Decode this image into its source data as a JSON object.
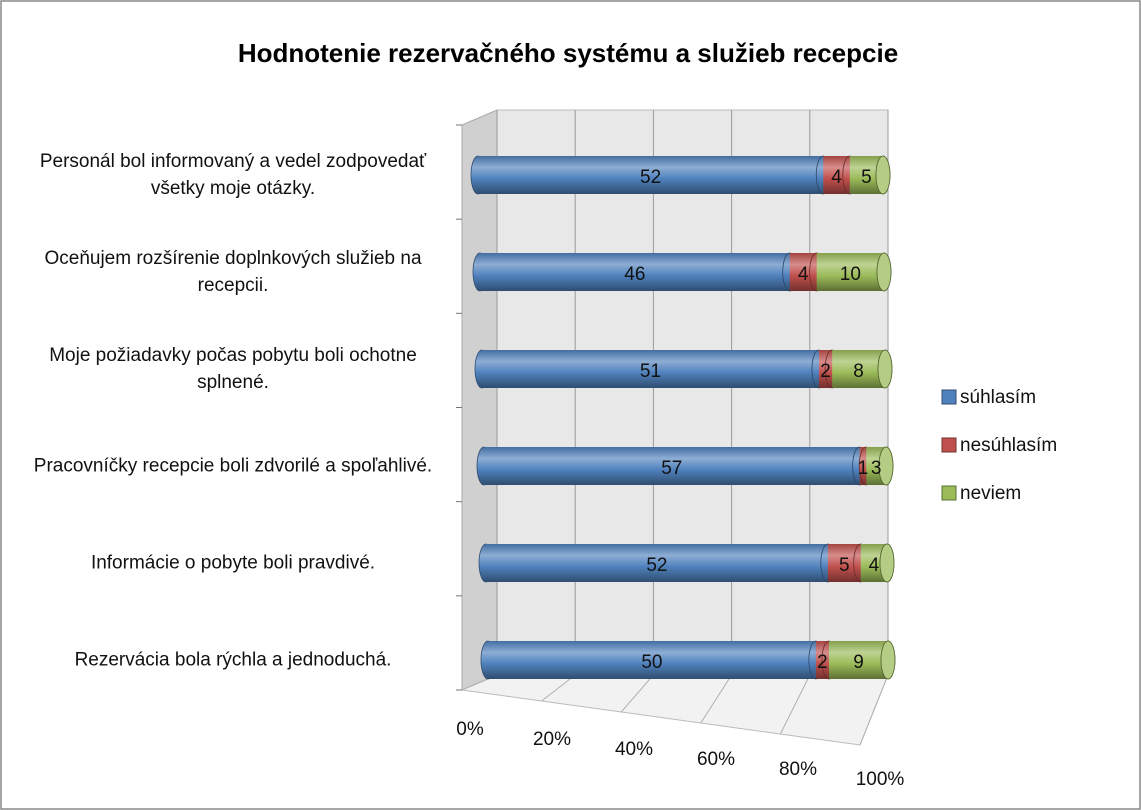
{
  "chart_data": {
    "type": "bar",
    "stacked": "percent",
    "orientation": "horizontal",
    "title": "Hodnotenie rezervačného systému a služieb recepcie",
    "categories": [
      "Personál bol informovaný a vedel zodpovedať všetky moje otázky.",
      "Oceňujem rozšírenie doplnkových služieb na recepcii.",
      "Moje požiadavky počas pobytu boli ochotne splnené.",
      "Pracovníčky recepcie boli zdvorilé a spoľahlivé.",
      "Informácie o pobyte boli pravdivé.",
      "Rezervácia bola rýchla a jednoduchá."
    ],
    "series": [
      {
        "name": "súhlasím",
        "color": "#4f81bd",
        "values": [
          52,
          46,
          51,
          57,
          52,
          50
        ]
      },
      {
        "name": "nesúhlasím",
        "color": "#c0504d",
        "values": [
          4,
          4,
          2,
          1,
          5,
          2
        ]
      },
      {
        "name": "neviem",
        "color": "#9bbb59",
        "values": [
          5,
          10,
          8,
          3,
          4,
          9
        ]
      }
    ],
    "xlim": [
      0,
      100
    ],
    "xticks": [
      {
        "value": 0,
        "label": "0%"
      },
      {
        "value": 20,
        "label": "20%"
      },
      {
        "value": 40,
        "label": "40%"
      },
      {
        "value": 60,
        "label": "60%"
      },
      {
        "value": 80,
        "label": "80%"
      },
      {
        "value": 100,
        "label": "100%"
      }
    ],
    "grid": true,
    "legend": "right"
  }
}
